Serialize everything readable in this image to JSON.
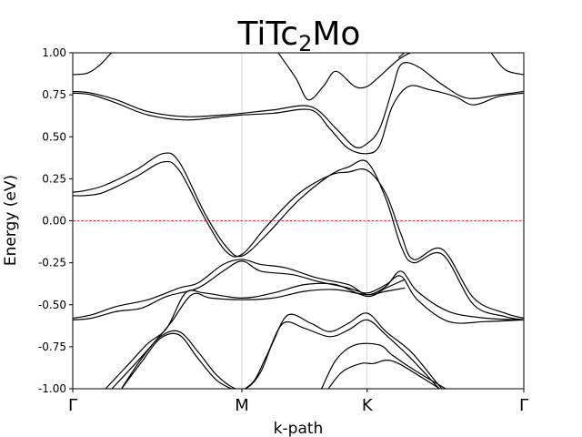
{
  "chart_data": {
    "type": "line",
    "title": {
      "main": "TiTc",
      "sub": "2",
      "tail": "Mo"
    },
    "xlabel": "k-path",
    "ylabel": "Energy (eV)",
    "ylim": [
      -1.0,
      1.0
    ],
    "xlim": [
      0,
      3.6
    ],
    "yticks": [
      "-1.00",
      "-0.75",
      "-0.50",
      "-0.25",
      "0.00",
      "0.25",
      "0.50",
      "0.75",
      "1.00"
    ],
    "ytick_values": [
      -1.0,
      -0.75,
      -0.5,
      -0.25,
      0.0,
      0.25,
      0.5,
      0.75,
      1.0
    ],
    "high_symmetry_points": [
      {
        "label": "Γ",
        "x": 0
      },
      {
        "label": "M",
        "x": 1.35
      },
      {
        "label": "K",
        "x": 2.35
      },
      {
        "label": "Γ",
        "x": 3.6
      }
    ],
    "fermi_level": 0.0,
    "fermi_color": "#e8000b",
    "line_color": "#000000",
    "vline_color": "#cccccc",
    "series": [
      {
        "values": [
          [
            0,
            0.87
          ],
          [
            0.12,
            0.88
          ],
          [
            0.22,
            0.93
          ],
          [
            0.32,
            1.01
          ]
        ]
      },
      {
        "values": [
          [
            3.33,
            1.01
          ],
          [
            3.45,
            0.9
          ],
          [
            3.6,
            0.87
          ]
        ]
      },
      {
        "values": [
          [
            0,
            0.77
          ],
          [
            0.15,
            0.76
          ],
          [
            0.35,
            0.72
          ],
          [
            0.6,
            0.65
          ],
          [
            0.9,
            0.62
          ],
          [
            1.2,
            0.63
          ],
          [
            1.35,
            0.64
          ],
          [
            1.6,
            0.66
          ],
          [
            1.9,
            0.68
          ],
          [
            2.1,
            0.55
          ],
          [
            2.25,
            0.44
          ],
          [
            2.35,
            0.46
          ],
          [
            2.45,
            0.55
          ],
          [
            2.55,
            0.78
          ],
          [
            2.62,
            0.93
          ],
          [
            2.75,
            0.92
          ],
          [
            2.95,
            0.81
          ],
          [
            3.15,
            0.73
          ],
          [
            3.4,
            0.75
          ],
          [
            3.6,
            0.77
          ]
        ]
      },
      {
        "values": [
          [
            0,
            0.76
          ],
          [
            0.15,
            0.75
          ],
          [
            0.35,
            0.7
          ],
          [
            0.6,
            0.63
          ],
          [
            0.9,
            0.6
          ],
          [
            1.2,
            0.62
          ],
          [
            1.35,
            0.63
          ],
          [
            1.6,
            0.64
          ],
          [
            1.9,
            0.66
          ],
          [
            2.05,
            0.55
          ],
          [
            2.2,
            0.43
          ],
          [
            2.35,
            0.4
          ],
          [
            2.45,
            0.45
          ],
          [
            2.55,
            0.68
          ],
          [
            2.68,
            0.8
          ],
          [
            2.85,
            0.78
          ],
          [
            3.05,
            0.74
          ],
          [
            3.2,
            0.69
          ],
          [
            3.4,
            0.74
          ],
          [
            3.6,
            0.76
          ]
        ]
      },
      {
        "values": [
          [
            1.63,
            1.01
          ],
          [
            1.78,
            0.85
          ],
          [
            1.88,
            0.72
          ],
          [
            2.0,
            0.8
          ],
          [
            2.1,
            0.89
          ],
          [
            2.25,
            0.8
          ],
          [
            2.35,
            0.8
          ],
          [
            2.45,
            0.86
          ],
          [
            2.6,
            0.96
          ],
          [
            2.72,
            1.01
          ]
        ]
      },
      {
        "values": [
          [
            2.6,
            0.97
          ],
          [
            2.66,
            1.01
          ]
        ]
      },
      {
        "values": [
          [
            0,
            0.17
          ],
          [
            0.1,
            0.18
          ],
          [
            0.25,
            0.21
          ],
          [
            0.5,
            0.3
          ],
          [
            0.72,
            0.4
          ],
          [
            0.85,
            0.35
          ],
          [
            1.05,
            0.05
          ],
          [
            1.22,
            -0.15
          ],
          [
            1.35,
            -0.21
          ],
          [
            1.55,
            -0.08
          ],
          [
            1.8,
            0.12
          ],
          [
            2.05,
            0.27
          ],
          [
            2.2,
            0.32
          ],
          [
            2.35,
            0.35
          ],
          [
            2.5,
            0.13
          ],
          [
            2.62,
            -0.15
          ],
          [
            2.72,
            -0.25
          ],
          [
            2.95,
            -0.2
          ],
          [
            3.2,
            -0.5
          ],
          [
            3.45,
            -0.57
          ],
          [
            3.6,
            -0.59
          ]
        ]
      },
      {
        "values": [
          [
            0,
            0.15
          ],
          [
            0.1,
            0.15
          ],
          [
            0.25,
            0.17
          ],
          [
            0.5,
            0.26
          ],
          [
            0.72,
            0.35
          ],
          [
            0.85,
            0.3
          ],
          [
            1.05,
            0.02
          ],
          [
            1.22,
            -0.18
          ],
          [
            1.35,
            -0.2
          ],
          [
            1.55,
            -0.03
          ],
          [
            1.8,
            0.16
          ],
          [
            2.05,
            0.27
          ],
          [
            2.2,
            0.29
          ],
          [
            2.35,
            0.3
          ],
          [
            2.5,
            0.16
          ],
          [
            2.62,
            -0.08
          ],
          [
            2.72,
            -0.23
          ],
          [
            2.95,
            -0.17
          ],
          [
            3.2,
            -0.46
          ],
          [
            3.45,
            -0.55
          ],
          [
            3.6,
            -0.58
          ]
        ]
      },
      {
        "values": [
          [
            0,
            -0.58
          ],
          [
            0.15,
            -0.56
          ],
          [
            0.35,
            -0.51
          ],
          [
            0.6,
            -0.47
          ],
          [
            0.85,
            -0.4
          ],
          [
            1.0,
            -0.37
          ],
          [
            1.2,
            -0.26
          ],
          [
            1.35,
            -0.23
          ],
          [
            1.5,
            -0.26
          ],
          [
            1.7,
            -0.28
          ],
          [
            1.95,
            -0.34
          ],
          [
            2.2,
            -0.38
          ],
          [
            2.35,
            -0.44
          ],
          [
            2.5,
            -0.39
          ],
          [
            2.62,
            -0.3
          ],
          [
            2.75,
            -0.42
          ],
          [
            3.0,
            -0.54
          ],
          [
            3.3,
            -0.58
          ],
          [
            3.6,
            -0.59
          ]
        ]
      },
      {
        "values": [
          [
            0,
            -0.59
          ],
          [
            0.15,
            -0.58
          ],
          [
            0.35,
            -0.54
          ],
          [
            0.55,
            -0.52
          ],
          [
            0.75,
            -0.45
          ],
          [
            1.0,
            -0.4
          ],
          [
            1.2,
            -0.3
          ],
          [
            1.35,
            -0.24
          ],
          [
            1.5,
            -0.3
          ],
          [
            1.75,
            -0.32
          ],
          [
            1.95,
            -0.36
          ],
          [
            2.2,
            -0.4
          ],
          [
            2.35,
            -0.43
          ],
          [
            2.5,
            -0.38
          ],
          [
            2.62,
            -0.33
          ],
          [
            2.75,
            -0.47
          ],
          [
            3.0,
            -0.6
          ],
          [
            3.3,
            -0.6
          ],
          [
            3.6,
            -0.59
          ]
        ]
      },
      {
        "values": [
          [
            0.25,
            -1.01
          ],
          [
            0.45,
            -0.85
          ],
          [
            0.6,
            -0.73
          ],
          [
            0.75,
            -0.64
          ],
          [
            0.9,
            -0.43
          ],
          [
            1.05,
            -0.43
          ],
          [
            1.35,
            -0.46
          ],
          [
            1.6,
            -0.43
          ],
          [
            1.85,
            -0.38
          ],
          [
            2.1,
            -0.38
          ],
          [
            2.35,
            -0.45
          ],
          [
            2.5,
            -0.4
          ],
          [
            2.65,
            -0.35
          ]
        ]
      },
      {
        "values": [
          [
            0.3,
            -1.01
          ],
          [
            0.5,
            -0.85
          ],
          [
            0.62,
            -0.75
          ],
          [
            0.78,
            -0.61
          ],
          [
            0.95,
            -0.44
          ],
          [
            1.1,
            -0.46
          ],
          [
            1.35,
            -0.47
          ],
          [
            1.6,
            -0.46
          ],
          [
            1.85,
            -0.42
          ],
          [
            2.1,
            -0.41
          ],
          [
            2.35,
            -0.44
          ],
          [
            2.5,
            -0.42
          ],
          [
            2.65,
            -0.4
          ]
        ]
      },
      {
        "values": [
          [
            0.38,
            -1.01
          ],
          [
            0.55,
            -0.82
          ],
          [
            0.7,
            -0.69
          ],
          [
            0.85,
            -0.66
          ],
          [
            1.0,
            -0.78
          ],
          [
            1.15,
            -0.92
          ],
          [
            1.3,
            -1.0
          ],
          [
            1.4,
            -0.99
          ],
          [
            1.5,
            -0.9
          ],
          [
            1.6,
            -0.72
          ],
          [
            1.72,
            -0.56
          ],
          [
            1.9,
            -0.61
          ],
          [
            2.05,
            -0.66
          ],
          [
            2.2,
            -0.61
          ],
          [
            2.35,
            -0.55
          ],
          [
            2.5,
            -0.66
          ],
          [
            2.7,
            -0.78
          ],
          [
            2.9,
            -0.96
          ],
          [
            2.96,
            -1.01
          ]
        ]
      },
      {
        "values": [
          [
            0.38,
            -1.01
          ],
          [
            0.55,
            -0.84
          ],
          [
            0.7,
            -0.7
          ],
          [
            0.85,
            -0.68
          ],
          [
            1.0,
            -0.82
          ],
          [
            1.15,
            -0.95
          ],
          [
            1.3,
            -1.01
          ],
          [
            1.35,
            -1.01
          ],
          [
            1.45,
            -0.95
          ],
          [
            1.55,
            -0.8
          ],
          [
            1.68,
            -0.61
          ],
          [
            1.85,
            -0.64
          ],
          [
            2.05,
            -0.69
          ],
          [
            2.2,
            -0.65
          ],
          [
            2.35,
            -0.59
          ],
          [
            2.5,
            -0.68
          ],
          [
            2.7,
            -0.82
          ],
          [
            2.9,
            -0.98
          ],
          [
            2.94,
            -1.01
          ]
        ]
      },
      {
        "values": [
          [
            1.98,
            -1.01
          ],
          [
            2.1,
            -0.83
          ],
          [
            2.25,
            -0.74
          ],
          [
            2.45,
            -0.74
          ],
          [
            2.55,
            -0.8
          ],
          [
            2.75,
            -0.9
          ],
          [
            3.0,
            -1.01
          ]
        ]
      },
      {
        "values": [
          [
            2.03,
            -1.01
          ],
          [
            2.15,
            -0.9
          ],
          [
            2.3,
            -0.85
          ],
          [
            2.4,
            -0.85
          ],
          [
            2.5,
            -0.83
          ],
          [
            2.6,
            -0.85
          ],
          [
            2.78,
            -0.93
          ],
          [
            2.95,
            -1.01
          ]
        ]
      }
    ]
  }
}
